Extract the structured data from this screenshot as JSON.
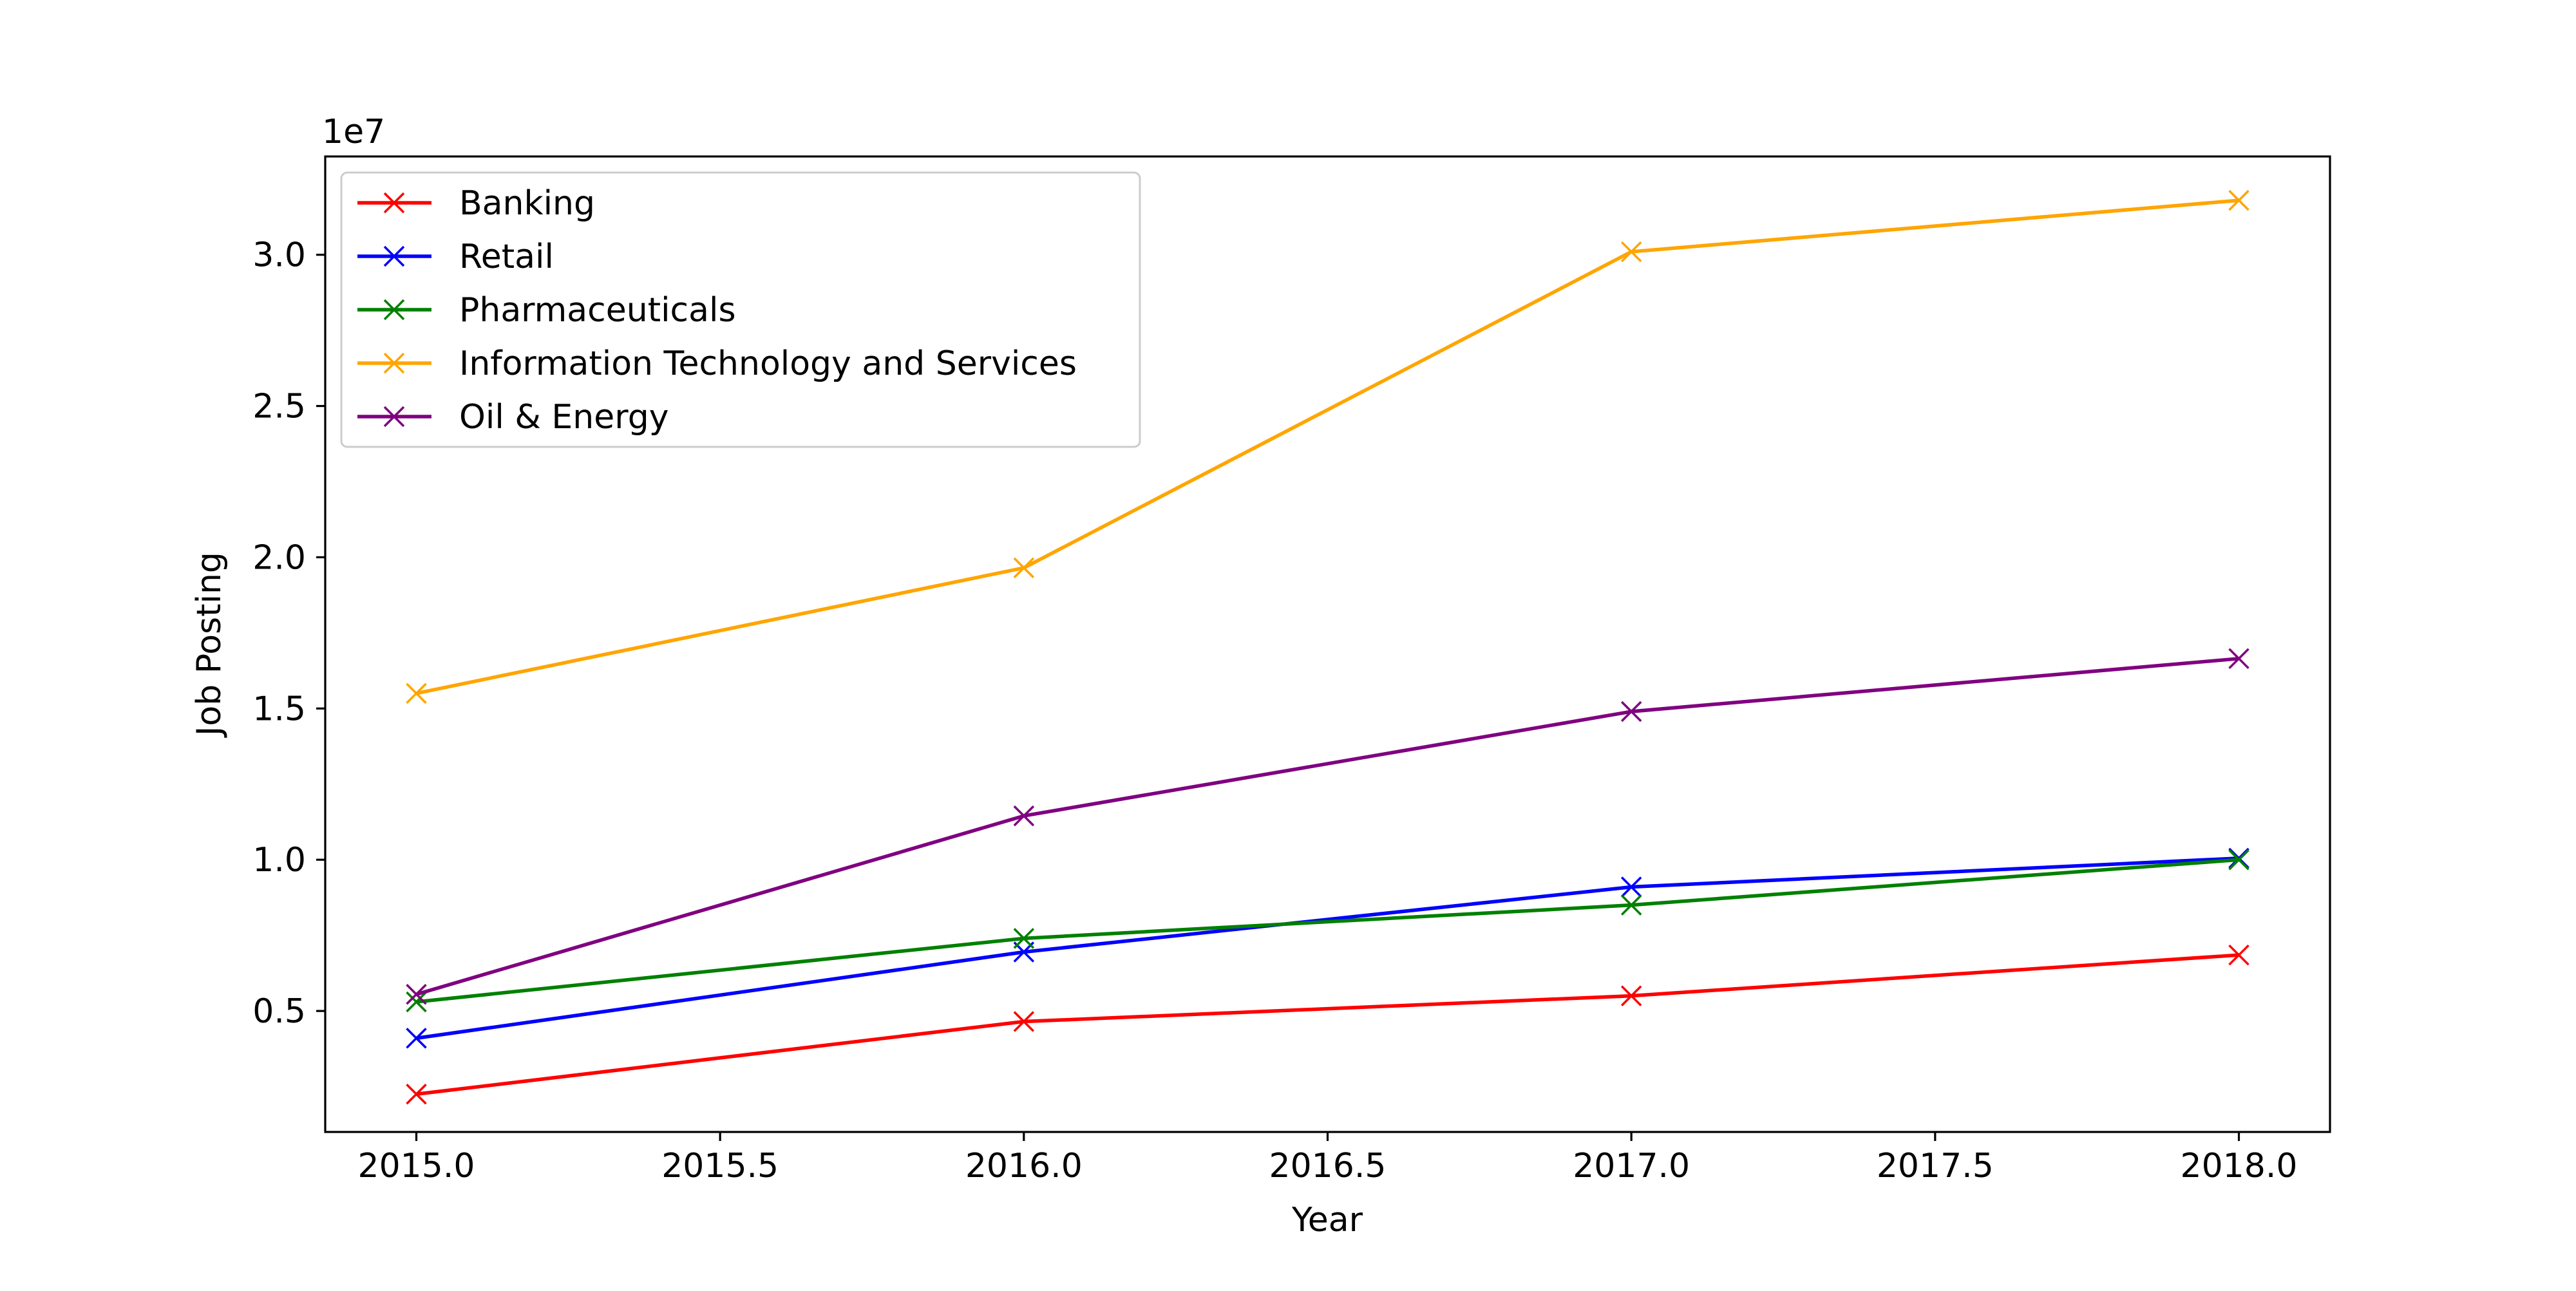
{
  "chart_data": {
    "type": "line",
    "xlabel": "Year",
    "ylabel": "Job Posting",
    "y_offset_label": "1e7",
    "xlim": [
      2014.85,
      2018.15
    ],
    "ylim": [
      1000000,
      33250000
    ],
    "x_ticks": [
      2015.0,
      2015.5,
      2016.0,
      2016.5,
      2017.0,
      2017.5,
      2018.0
    ],
    "x_tick_labels": [
      "2015.0",
      "2015.5",
      "2016.0",
      "2016.5",
      "2017.0",
      "2017.5",
      "2018.0"
    ],
    "y_ticks": [
      5000000,
      10000000,
      15000000,
      20000000,
      25000000,
      30000000
    ],
    "y_tick_labels": [
      "0.5",
      "1.0",
      "1.5",
      "2.0",
      "2.5",
      "3.0"
    ],
    "grid": false,
    "legend_position": "top-left",
    "marker": "x",
    "x": [
      2015,
      2016,
      2017,
      2018
    ],
    "series": [
      {
        "name": "Banking",
        "color": "#ff0000",
        "values": [
          2250000,
          4650000,
          5500000,
          6850000
        ]
      },
      {
        "name": "Retail",
        "color": "#0000ff",
        "values": [
          4100000,
          6950000,
          9100000,
          10050000
        ]
      },
      {
        "name": "Pharmaceuticals",
        "color": "#008000",
        "values": [
          5300000,
          7400000,
          8500000,
          10000000
        ]
      },
      {
        "name": "Information Technology and Services",
        "color": "#ffa500",
        "values": [
          15500000,
          19650000,
          30100000,
          31800000
        ]
      },
      {
        "name": "Oil & Energy",
        "color": "#800080",
        "values": [
          5550000,
          11450000,
          14900000,
          16650000
        ]
      }
    ]
  }
}
